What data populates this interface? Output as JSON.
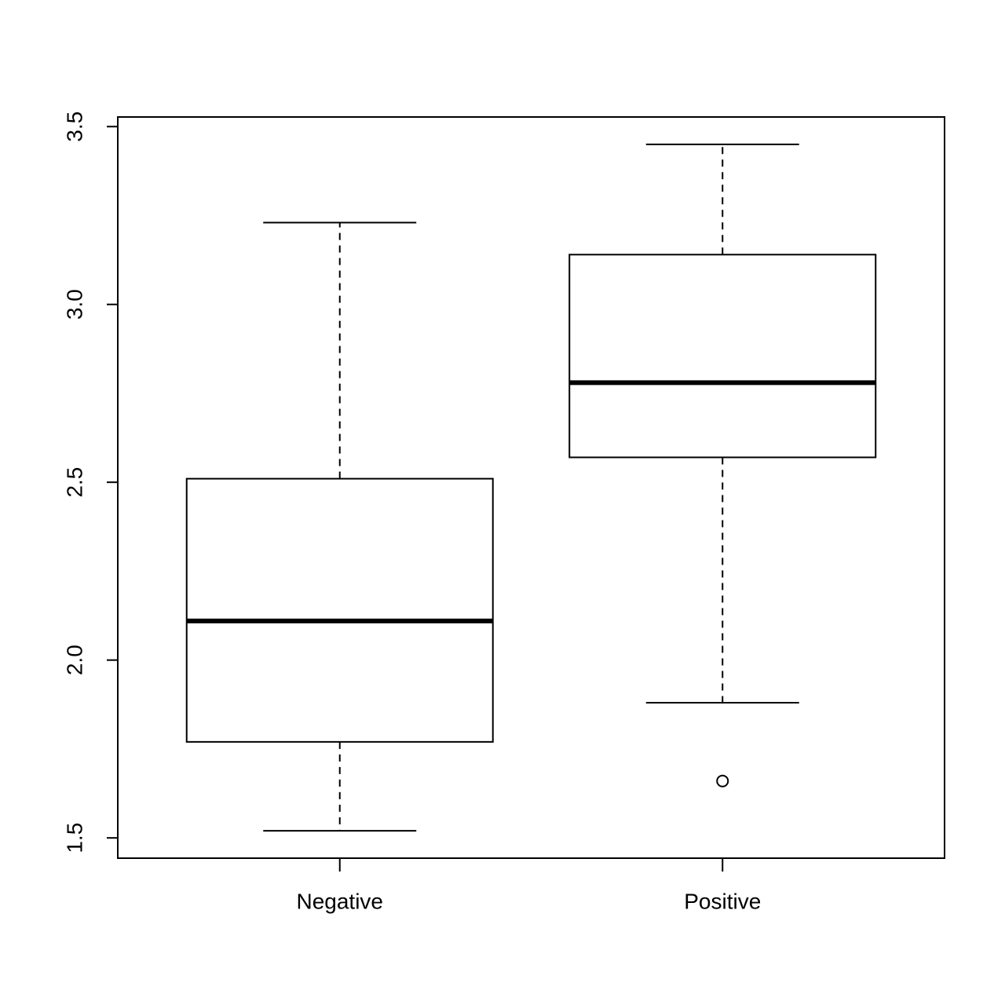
{
  "chart_data": {
    "type": "box",
    "categories": [
      "Negative",
      "Positive"
    ],
    "boxes": [
      {
        "min": 1.52,
        "q1": 1.77,
        "median": 2.11,
        "q3": 2.51,
        "max": 3.23,
        "outliers": []
      },
      {
        "min": 1.88,
        "q1": 2.57,
        "median": 2.78,
        "q3": 3.14,
        "max": 3.45,
        "outliers": [
          1.66
        ]
      }
    ],
    "color": "#000000",
    "ylim": [
      1.443,
      3.527
    ],
    "yticks": [
      1.5,
      {
        "value": 2,
        "label": "2.0"
      },
      2.5,
      {
        "value": 3,
        "label": "3.0"
      },
      3.5
    ]
  }
}
